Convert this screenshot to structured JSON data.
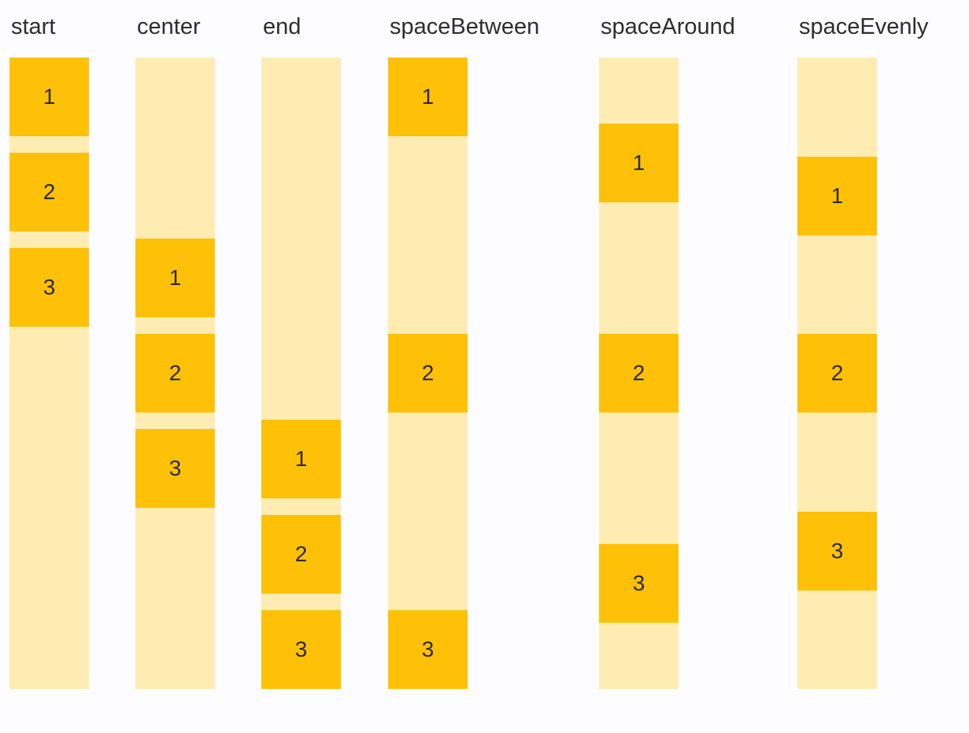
{
  "colors": {
    "background": "#FDFDFF",
    "track": "#FFECB3",
    "box": "#FFC107",
    "label_text": "#2E2E2E",
    "number_text": "#2B2B2B"
  },
  "columns": [
    {
      "id": "start",
      "label": "start",
      "css_justify": "flex-start",
      "gap_between_items": true,
      "items": [
        "1",
        "2",
        "3"
      ]
    },
    {
      "id": "center",
      "label": "center",
      "css_justify": "center",
      "gap_between_items": true,
      "items": [
        "1",
        "2",
        "3"
      ]
    },
    {
      "id": "end",
      "label": "end",
      "css_justify": "flex-end",
      "gap_between_items": true,
      "items": [
        "1",
        "2",
        "3"
      ]
    },
    {
      "id": "spaceBetween",
      "label": "spaceBetween",
      "css_justify": "space-between",
      "gap_between_items": false,
      "items": [
        "1",
        "2",
        "3"
      ]
    },
    {
      "id": "spaceAround",
      "label": "spaceAround",
      "css_justify": "space-around",
      "gap_between_items": false,
      "items": [
        "1",
        "2",
        "3"
      ]
    },
    {
      "id": "spaceEvenly",
      "label": "spaceEvenly",
      "css_justify": "space-evenly",
      "gap_between_items": false,
      "items": [
        "1",
        "2",
        "3"
      ]
    }
  ]
}
